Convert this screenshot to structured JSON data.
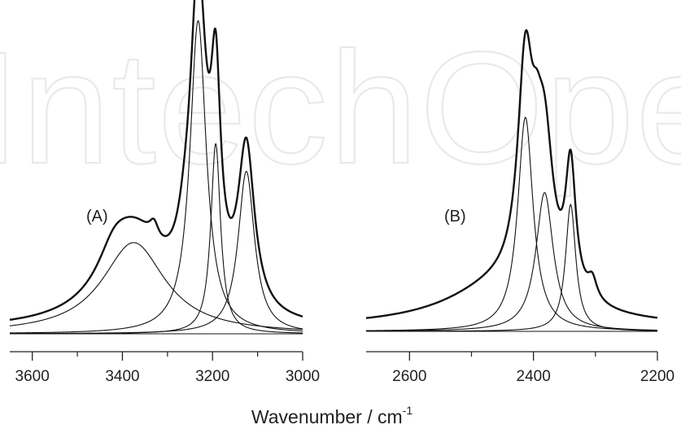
{
  "watermark": "IntechOpen",
  "xlabel": "Wavenumber / cm",
  "xlabel_sup": "-1",
  "colors": {
    "line": "#111111",
    "axis": "#222222",
    "watermark": "#e9e9e9"
  },
  "chart_data": [
    {
      "type": "line",
      "panel_label": "(A)",
      "xlim": [
        3650,
        3000
      ],
      "xticks": [
        3600,
        3400,
        3200,
        3000
      ],
      "baseline": 0.01,
      "components": [
        {
          "center": 3375,
          "height": 0.23,
          "width": 85
        },
        {
          "center": 3232,
          "height": 0.79,
          "width": 22
        },
        {
          "center": 3193,
          "height": 0.48,
          "width": 13
        },
        {
          "center": 3125,
          "height": 0.41,
          "width": 22
        }
      ],
      "total_extra": [
        {
          "center": 3420,
          "height": 0.06,
          "width": 40
        },
        {
          "center": 3330,
          "height": 0.04,
          "width": 12
        },
        {
          "center": 3262,
          "height": 0.05,
          "width": 18
        }
      ]
    },
    {
      "type": "line",
      "panel_label": "(B)",
      "xlim": [
        2670,
        2200
      ],
      "xticks": [
        2600,
        2400,
        2200
      ],
      "baseline": 0.01,
      "components": [
        {
          "center": 2413,
          "height": 0.54,
          "width": 15
        },
        {
          "center": 2382,
          "height": 0.35,
          "width": 17
        },
        {
          "center": 2340,
          "height": 0.32,
          "width": 10
        }
      ],
      "total_extra": [
        {
          "center": 2450,
          "height": 0.1,
          "width": 110
        },
        {
          "center": 2395,
          "height": 0.12,
          "width": 10
        },
        {
          "center": 2305,
          "height": 0.05,
          "width": 9
        }
      ]
    }
  ]
}
